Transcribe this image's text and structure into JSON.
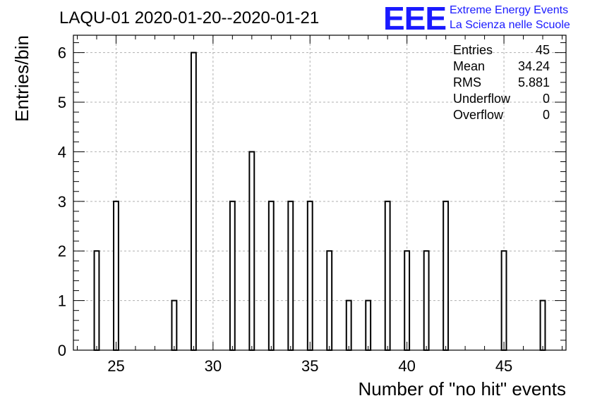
{
  "chart_data": {
    "type": "bar",
    "title": "LAQU-01 2020-01-20--2020-01-21",
    "xlabel": "Number of \"no hit\" events",
    "ylabel": "Entries/bin",
    "xlim": [
      22.8,
      48.2
    ],
    "ylim": [
      0,
      6.35
    ],
    "bin_width": 0.25,
    "x_ticks": [
      25,
      30,
      35,
      40,
      45
    ],
    "y_ticks": [
      0,
      1,
      2,
      3,
      4,
      5,
      6
    ],
    "grid": true,
    "bins": [
      {
        "x": 24,
        "value": 2
      },
      {
        "x": 25,
        "value": 3
      },
      {
        "x": 28,
        "value": 1
      },
      {
        "x": 29,
        "value": 6
      },
      {
        "x": 31,
        "value": 3
      },
      {
        "x": 32,
        "value": 4
      },
      {
        "x": 33,
        "value": 3
      },
      {
        "x": 34,
        "value": 3
      },
      {
        "x": 35,
        "value": 3
      },
      {
        "x": 36,
        "value": 2
      },
      {
        "x": 37,
        "value": 1
      },
      {
        "x": 38,
        "value": 1
      },
      {
        "x": 39,
        "value": 3
      },
      {
        "x": 40,
        "value": 2
      },
      {
        "x": 41,
        "value": 2
      },
      {
        "x": 42,
        "value": 3
      },
      {
        "x": 45,
        "value": 2
      },
      {
        "x": 47,
        "value": 1
      }
    ],
    "colors": {
      "bar_stroke": "#000000",
      "bar_fill": "#ffffff",
      "grid": "#b0b0b0",
      "logo": "#1a1aff"
    }
  },
  "stats_box": {
    "rows": [
      {
        "label": "Entries",
        "value": "45"
      },
      {
        "label": "Mean",
        "value": "34.24"
      },
      {
        "label": "RMS",
        "value": "5.881"
      },
      {
        "label": "Underflow",
        "value": "0"
      },
      {
        "label": "Overflow",
        "value": "0"
      }
    ]
  },
  "logo": {
    "mark": "EEE",
    "line1": "Extreme Energy Events",
    "line2": "La Scienza nelle Scuole"
  }
}
